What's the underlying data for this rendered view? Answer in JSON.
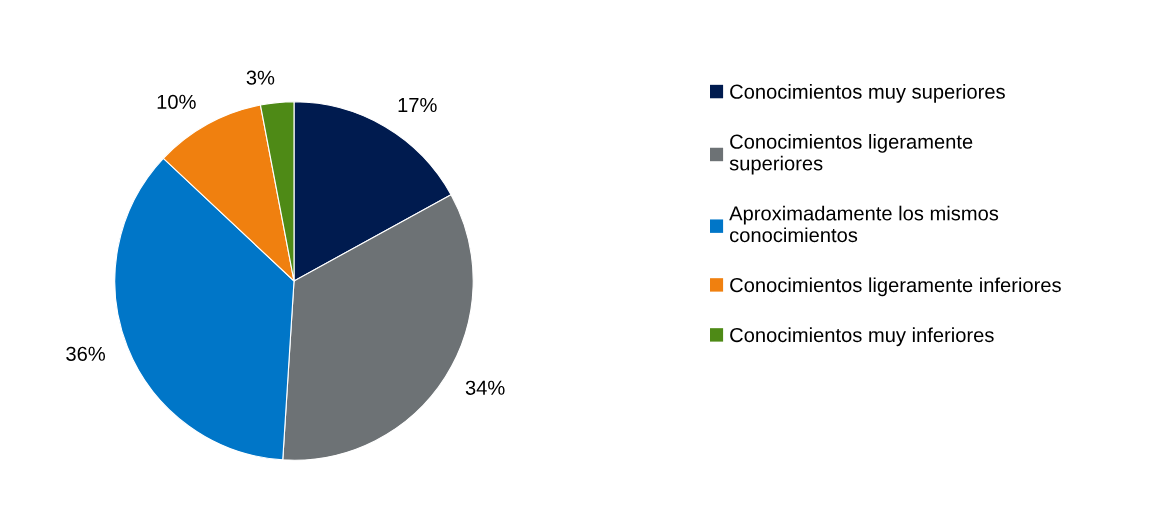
{
  "chart_data": {
    "type": "pie",
    "categories": [
      "Conocimientos muy superiores",
      "Conocimientos ligeramente\nsuperiores",
      "Aproximadamente los mismos\nconocimientos",
      "Conocimientos ligeramente inferiores",
      "Conocimientos muy inferiores"
    ],
    "values": [
      17,
      34,
      36,
      10,
      3
    ],
    "value_labels": [
      "17%",
      "34%",
      "36%",
      "10%",
      "3%"
    ],
    "colors": [
      "#001b4f",
      "#6d7275",
      "#0076c8",
      "#f0800f",
      "#4e8a16"
    ],
    "legend": "right"
  }
}
